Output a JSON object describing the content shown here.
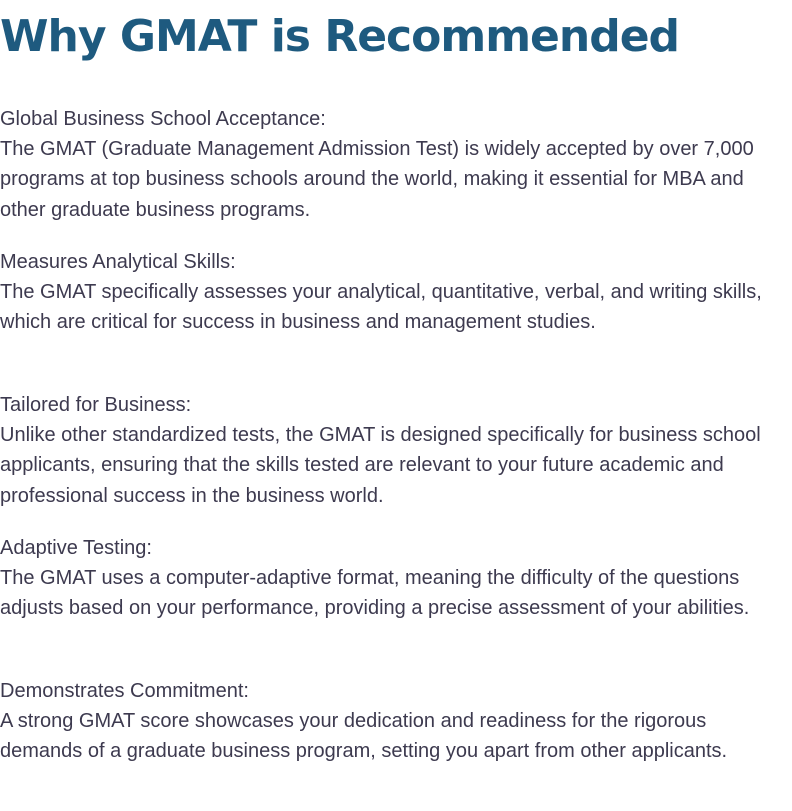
{
  "colors": {
    "title": "#1e5a7f",
    "text": "#3d3a4f",
    "background": "#ffffff"
  },
  "title": "Why GMAT is Recommended",
  "sections": [
    {
      "heading": "Global Business School Acceptance:",
      "body": "The GMAT (Graduate Management Admission Test) is widely accepted by over 7,000 programs at top business schools around the world, making it essential for MBA and other graduate business programs."
    },
    {
      "heading": "Measures Analytical Skills:",
      "body": "The GMAT specifically assesses your analytical, quantitative, verbal, and writing skills, which are critical for success in business and management studies."
    },
    {
      "heading": "Tailored for Business:",
      "body": "Unlike other standardized tests, the GMAT is designed specifically for business school applicants, ensuring that the skills tested are relevant to your future academic and professional success in the business world."
    },
    {
      "heading": "Adaptive Testing:",
      "body": "The GMAT uses a computer-adaptive format, meaning the difficulty of the questions adjusts based on your performance, providing a precise assessment of your abilities."
    },
    {
      "heading": "Demonstrates Commitment:",
      "body": "A strong GMAT score showcases your dedication and readiness for the rigorous demands of a graduate business program, setting you apart from other applicants."
    }
  ]
}
